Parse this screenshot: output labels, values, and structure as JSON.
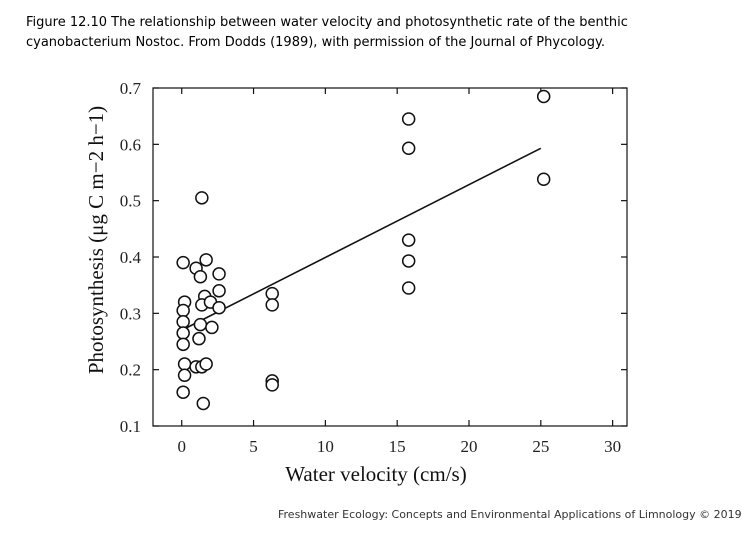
{
  "caption": {
    "line1": "Figure 12.10 The relationship between water velocity and photosynthetic rate of the benthic",
    "line2": "cyanobacterium Nostoc. From Dodds (1989), with permission of the Journal of Phycology."
  },
  "footer": "Freshwater Ecology: Concepts and Environmental Applications of Limnology © 2019",
  "chart_data": {
    "type": "scatter",
    "title": "",
    "xlabel": "Water velocity (cm/s)",
    "ylabel": "Photosynthesis (μg C m−2 h−1)",
    "xlim": [
      -2,
      31
    ],
    "ylim": [
      0.1,
      0.7
    ],
    "xticks": [
      0,
      5,
      10,
      15,
      20,
      25,
      30
    ],
    "yticks": [
      0.1,
      0.2,
      0.3,
      0.4,
      0.5,
      0.6,
      0.7
    ],
    "ytick_labels": [
      "0.1",
      "0.2",
      "0.3",
      "0.4",
      "0.5",
      "0.6",
      "0.7"
    ],
    "grid": false,
    "series": [
      {
        "name": "observations",
        "marker": "open-circle",
        "points": [
          [
            0.1,
            0.39
          ],
          [
            0.2,
            0.32
          ],
          [
            0.1,
            0.305
          ],
          [
            0.1,
            0.285
          ],
          [
            0.1,
            0.265
          ],
          [
            0.1,
            0.245
          ],
          [
            0.2,
            0.21
          ],
          [
            0.2,
            0.19
          ],
          [
            0.1,
            0.16
          ],
          [
            1.0,
            0.38
          ],
          [
            1.3,
            0.365
          ],
          [
            1.4,
            0.505
          ],
          [
            1.7,
            0.395
          ],
          [
            1.6,
            0.33
          ],
          [
            1.4,
            0.315
          ],
          [
            1.3,
            0.28
          ],
          [
            1.2,
            0.255
          ],
          [
            1.0,
            0.205
          ],
          [
            1.4,
            0.205
          ],
          [
            1.7,
            0.21
          ],
          [
            1.5,
            0.14
          ],
          [
            2.0,
            0.32
          ],
          [
            2.1,
            0.275
          ],
          [
            2.6,
            0.37
          ],
          [
            2.6,
            0.34
          ],
          [
            2.6,
            0.31
          ],
          [
            6.3,
            0.335
          ],
          [
            6.3,
            0.315
          ],
          [
            6.3,
            0.18
          ],
          [
            6.3,
            0.173
          ],
          [
            15.8,
            0.645
          ],
          [
            15.8,
            0.593
          ],
          [
            15.8,
            0.43
          ],
          [
            15.8,
            0.393
          ],
          [
            15.8,
            0.345
          ],
          [
            25.2,
            0.685
          ],
          [
            25.2,
            0.538
          ]
        ]
      },
      {
        "name": "regression",
        "line": [
          [
            0,
            0.27
          ],
          [
            25,
            0.593
          ]
        ]
      }
    ]
  }
}
